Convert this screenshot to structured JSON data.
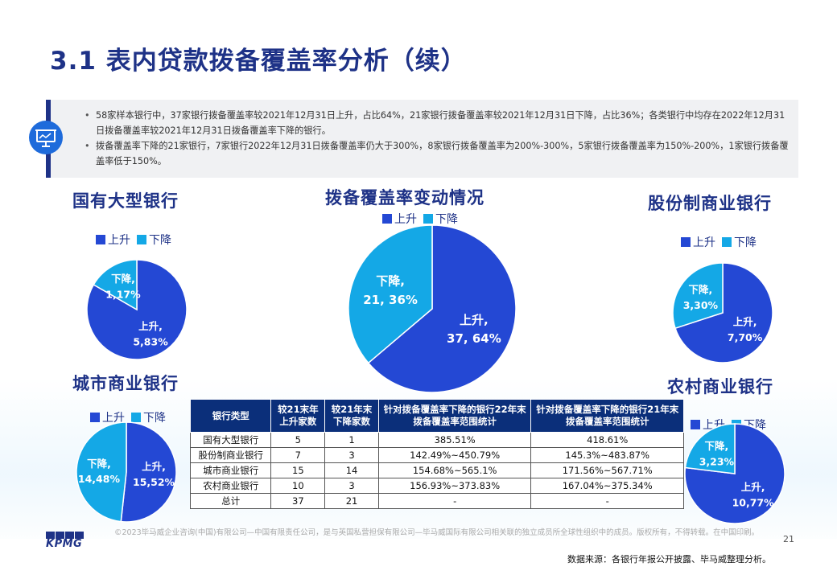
{
  "title": "3.1 表内贷款拨备覆盖率分析（续）",
  "summary": [
    "58家样本银行中，37家银行拨备覆盖率较2021年12月31日上升，占比64%，21家银行拨备覆盖率较2021年12月31日下降，占比36%；各类银行中均存在2022年12月31日拨备覆盖率较2021年12月31日拨备覆盖率下降的银行。",
    "拨备覆盖率下降的21家银行，7家银行2022年12月31日拨备覆盖率仍大于300%，8家银行拨备覆盖率为200%-300%，5家银行拨备覆盖率为150%-200%，1家银行拨备覆盖率低于150%。"
  ],
  "colors": {
    "up": "#2448d4",
    "down": "#14a8e6",
    "title": "#1e3287",
    "table_header": "#0b2f7a"
  },
  "chart_data": [
    {
      "type": "pie",
      "title": "拨备覆盖率变动情况",
      "legend": [
        "上升",
        "下降"
      ],
      "slices": [
        {
          "name": "上升",
          "count": 37,
          "percent": 64,
          "label": "37, 64%"
        },
        {
          "name": "下降",
          "count": 21,
          "percent": 36,
          "label": "21, 36%"
        }
      ]
    },
    {
      "type": "pie",
      "title": "国有大型银行",
      "legend": [
        "上升",
        "下降"
      ],
      "slices": [
        {
          "name": "上升",
          "count": 5,
          "percent": 83,
          "label": "5,83%"
        },
        {
          "name": "下降",
          "count": 1,
          "percent": 17,
          "label": "1,17%"
        }
      ]
    },
    {
      "type": "pie",
      "title": "股份制商业银行",
      "legend": [
        "上升",
        "下降"
      ],
      "slices": [
        {
          "name": "上升",
          "count": 7,
          "percent": 70,
          "label": "7,70%"
        },
        {
          "name": "下降",
          "count": 3,
          "percent": 30,
          "label": "3,30%"
        }
      ]
    },
    {
      "type": "pie",
      "title": "城市商业银行",
      "legend": [
        "上升",
        "下降"
      ],
      "slices": [
        {
          "name": "上升",
          "count": 15,
          "percent": 52,
          "label": "15,52%"
        },
        {
          "name": "下降",
          "count": 14,
          "percent": 48,
          "label": "14,48%"
        }
      ]
    },
    {
      "type": "pie",
      "title": "农村商业银行",
      "legend": [
        "上升",
        "下降"
      ],
      "slices": [
        {
          "name": "上升",
          "count": 10,
          "percent": 77,
          "label": "10,77%"
        },
        {
          "name": "下降",
          "count": 3,
          "percent": 23,
          "label": "3,23%"
        }
      ]
    },
    {
      "type": "table",
      "columns": [
        "银行类型",
        "较21末年上升家数",
        "较21年末下降家数",
        "针对拨备覆盖率下降的银行22年末拨备覆盖率范围统计",
        "针对拨备覆盖率下降的银行21年末拨备覆盖率范围统计"
      ],
      "rows": [
        [
          "国有大型银行",
          "5",
          "1",
          "385.51%",
          "418.61%"
        ],
        [
          "股份制商业银行",
          "7",
          "3",
          "142.49%~450.79%",
          "145.3%~483.87%"
        ],
        [
          "城市商业银行",
          "15",
          "14",
          "154.68%~565.1%",
          "171.56%~567.71%"
        ],
        [
          "农村商业银行",
          "10",
          "3",
          "156.93%~373.83%",
          "167.04%~375.34%"
        ],
        [
          "总计",
          "37",
          "21",
          "-",
          "-"
        ]
      ]
    }
  ],
  "footer": {
    "copyright": "©2023毕马威企业咨询(中国)有限公司—中国有限责任公司，是与英国私营担保有限公司—毕马威国际有限公司相关联的独立成员所全球性组织中的成员。版权所有，不得转载。在中国印刷。",
    "page_number": "21",
    "source": "数据来源：各银行年报公开披露、毕马威整理分析。",
    "logo_text": "KPMG"
  }
}
